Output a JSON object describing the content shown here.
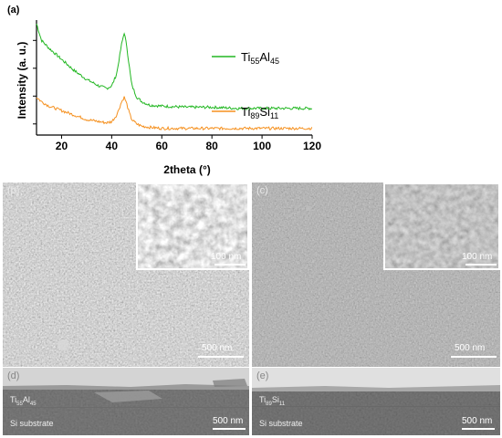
{
  "chart_data": {
    "type": "line",
    "panel_label": "(a)",
    "xlabel": "2theta (°)",
    "ylabel": "Intensity (a. u.)",
    "xlim": [
      10,
      120
    ],
    "x_ticks": [
      20,
      40,
      60,
      80,
      100,
      120
    ],
    "grid": false,
    "legend": "inline-right",
    "series": [
      {
        "name_main": "Ti",
        "name_sub1": "55",
        "name_mid": "Al",
        "name_sub2": "45",
        "color": "#22b722",
        "x": [
          10,
          12,
          15,
          20,
          25,
          30,
          35,
          38,
          40,
          42,
          44,
          45,
          46,
          47,
          48,
          50,
          52,
          55,
          60,
          70,
          80,
          90,
          100,
          110,
          120
        ],
        "y": [
          1.0,
          0.85,
          0.78,
          0.68,
          0.58,
          0.5,
          0.44,
          0.42,
          0.44,
          0.55,
          0.82,
          0.92,
          0.8,
          0.62,
          0.45,
          0.34,
          0.3,
          0.27,
          0.26,
          0.25,
          0.25,
          0.24,
          0.24,
          0.24,
          0.24
        ]
      },
      {
        "name_main": "Ti",
        "name_sub1": "89",
        "name_mid": "Si",
        "name_sub2": "11",
        "color": "#f5901e",
        "x": [
          10,
          12,
          15,
          20,
          25,
          30,
          35,
          38,
          40,
          42,
          44,
          45,
          46,
          47,
          48,
          50,
          52,
          55,
          60,
          70,
          80,
          90,
          100,
          110,
          120
        ],
        "y": [
          0.34,
          0.3,
          0.26,
          0.22,
          0.18,
          0.14,
          0.12,
          0.11,
          0.12,
          0.18,
          0.3,
          0.34,
          0.28,
          0.2,
          0.14,
          0.1,
          0.08,
          0.07,
          0.06,
          0.06,
          0.06,
          0.06,
          0.06,
          0.06,
          0.06
        ]
      }
    ]
  },
  "sem": {
    "panel_b": {
      "label": "(b)",
      "scale": "500 nm",
      "inset_scale": "100 nm",
      "tone": "#a2a2a2"
    },
    "panel_c": {
      "label": "(c)",
      "scale": "500 nm",
      "inset_scale": "100 nm",
      "tone": "#8f8f8f"
    },
    "panel_d": {
      "label": "(d)",
      "scale": "500 nm",
      "substrate": "Si substrate",
      "film_main": "Ti",
      "film_sub1": "55",
      "film_mid": "Al",
      "film_sub2": "45"
    },
    "panel_e": {
      "label": "(e)",
      "scale": "500 nm",
      "substrate": "Si substrate",
      "film_main": "Ti",
      "film_sub1": "89",
      "film_mid": "Si",
      "film_sub2": "11"
    }
  }
}
